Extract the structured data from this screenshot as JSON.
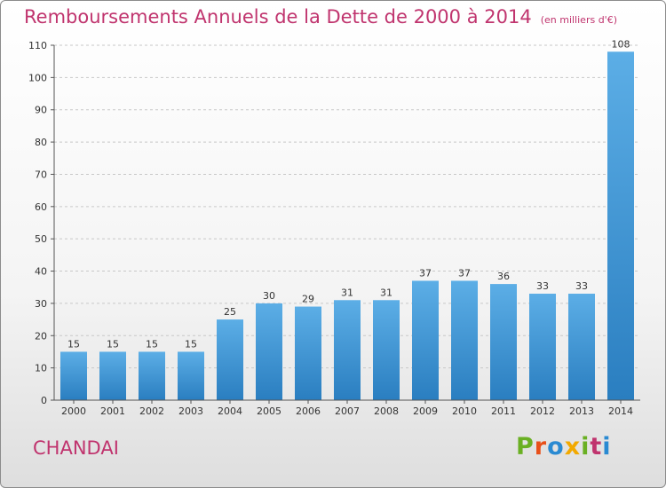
{
  "chart_data": {
    "type": "bar",
    "title": "Remboursements Annuels de la Dette de 2000 à 2014",
    "subtitle": "(en milliers d'€)",
    "categories": [
      "2000",
      "2001",
      "2002",
      "2003",
      "2004",
      "2005",
      "2006",
      "2007",
      "2008",
      "2009",
      "2010",
      "2011",
      "2012",
      "2013",
      "2014"
    ],
    "values": [
      15,
      15,
      15,
      15,
      25,
      30,
      29,
      31,
      31,
      37,
      37,
      36,
      33,
      33,
      108
    ],
    "ylim": [
      0,
      110
    ],
    "yticks": [
      0,
      10,
      20,
      30,
      40,
      50,
      60,
      70,
      80,
      90,
      100,
      110
    ],
    "xlabel": "",
    "ylabel": "",
    "grid": true,
    "bar_color_top": "#5caee6",
    "bar_color_bottom": "#2a7ec0",
    "title_color": "#c0346e"
  },
  "footer": {
    "town": "CHANDAI",
    "logo_text": "Proxiti",
    "logo_colors": [
      "#6ab023",
      "#e8501a",
      "#2a8ad2",
      "#f2a900",
      "#6ab023",
      "#c0346e",
      "#2a8ad2"
    ]
  }
}
